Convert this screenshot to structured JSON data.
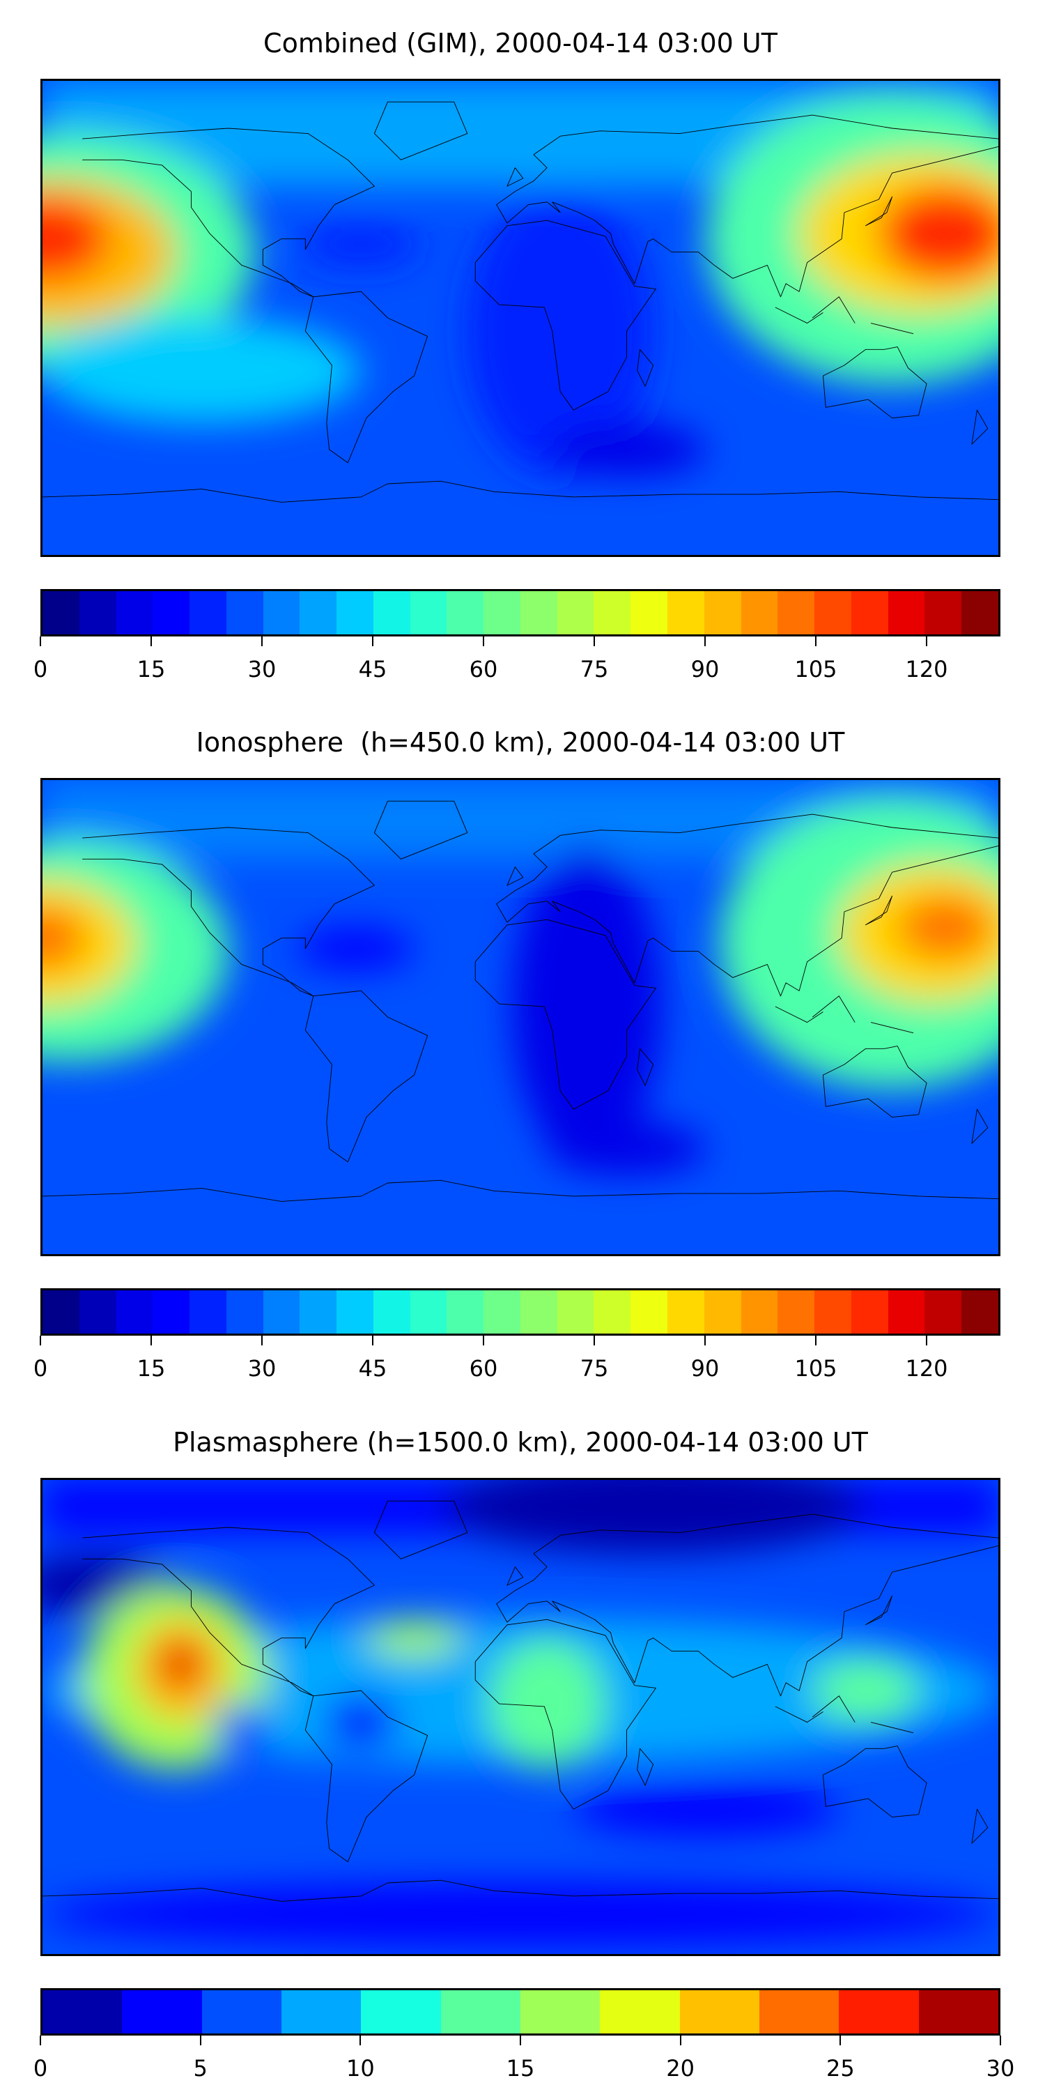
{
  "chart_data": [
    {
      "type": "heatmap",
      "title": "Combined (GIM), 2000-04-14 03:00 UT",
      "xlabel": "",
      "ylabel": "",
      "colorbar": {
        "range": [
          0,
          130
        ],
        "level_step": 5,
        "ticks": [
          0,
          15,
          30,
          45,
          60,
          75,
          90,
          105,
          120
        ],
        "tick_labels": [
          "0",
          "15",
          "30",
          "45",
          "60",
          "75",
          "90",
          "105",
          "120"
        ],
        "colors": [
          "#00008b",
          "#0000b8",
          "#0000e8",
          "#0000ff",
          "#0022ff",
          "#0050ff",
          "#0080ff",
          "#00a4ff",
          "#00ccff",
          "#12f5e6",
          "#2bffcd",
          "#4dffaa",
          "#6dff8a",
          "#8dff6a",
          "#aeff4a",
          "#ceff29",
          "#eeff10",
          "#ffd800",
          "#ffb900",
          "#ff9400",
          "#ff7100",
          "#ff4a00",
          "#ff2a00",
          "#e80000",
          "#c00000",
          "#8b0000"
        ]
      }
    },
    {
      "type": "heatmap",
      "title": "Ionosphere  (h=450.0 km), 2000-04-14 03:00 UT",
      "xlabel": "",
      "ylabel": "",
      "colorbar": {
        "range": [
          0,
          130
        ],
        "level_step": 5,
        "ticks": [
          0,
          15,
          30,
          45,
          60,
          75,
          90,
          105,
          120
        ],
        "tick_labels": [
          "0",
          "15",
          "30",
          "45",
          "60",
          "75",
          "90",
          "105",
          "120"
        ],
        "colors": [
          "#00008b",
          "#0000b8",
          "#0000e8",
          "#0000ff",
          "#0022ff",
          "#0050ff",
          "#0080ff",
          "#00a4ff",
          "#00ccff",
          "#12f5e6",
          "#2bffcd",
          "#4dffaa",
          "#6dff8a",
          "#8dff6a",
          "#aeff4a",
          "#ceff29",
          "#eeff10",
          "#ffd800",
          "#ffb900",
          "#ff9400",
          "#ff7100",
          "#ff4a00",
          "#ff2a00",
          "#e80000",
          "#c00000",
          "#8b0000"
        ]
      }
    },
    {
      "type": "heatmap",
      "title": "Plasmasphere (h=1500.0 km), 2000-04-14 03:00 UT",
      "xlabel": "",
      "ylabel": "",
      "colorbar": {
        "range": [
          0,
          30
        ],
        "level_step": 2.5,
        "ticks": [
          0,
          5,
          10,
          15,
          20,
          25,
          30
        ],
        "tick_labels": [
          "0",
          "5",
          "10",
          "15",
          "20",
          "25",
          "30"
        ],
        "colors": [
          "#0000aa",
          "#0000ff",
          "#0050ff",
          "#00a8ff",
          "#16ffe1",
          "#5aff9d",
          "#a0ff56",
          "#e4ff12",
          "#ffc000",
          "#ff6c00",
          "#ff1e00",
          "#aa0000"
        ]
      }
    }
  ]
}
